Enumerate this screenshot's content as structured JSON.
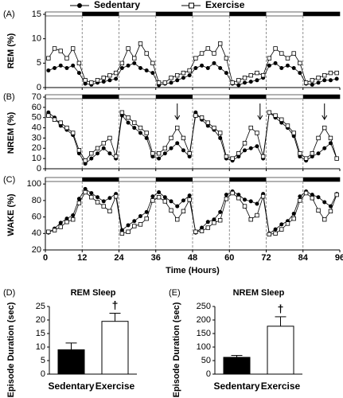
{
  "chart_data": [
    {
      "type": "line",
      "panel_label": "(A)",
      "y_label": "REM (%)",
      "x": [
        1,
        3,
        5,
        7,
        9,
        11,
        13,
        15,
        17,
        19,
        21,
        23,
        25,
        27,
        29,
        31,
        33,
        35,
        37,
        39,
        41,
        43,
        45,
        47,
        49,
        51,
        53,
        55,
        57,
        59,
        61,
        63,
        65,
        67,
        69,
        71,
        73,
        75,
        77,
        79,
        81,
        83,
        85,
        87,
        89,
        91,
        93,
        95
      ],
      "xlim": [
        0,
        96
      ],
      "xticks": [
        0,
        12,
        24,
        36,
        48,
        60,
        72,
        84,
        96
      ],
      "ylim": [
        0,
        15
      ],
      "yticks": [
        0,
        5,
        10,
        15
      ],
      "dark_periods": [
        [
          12,
          24
        ],
        [
          36,
          48
        ],
        [
          60,
          72
        ],
        [
          84,
          96
        ]
      ],
      "series": [
        {
          "name": "Sedentary",
          "color": "#000000",
          "marker": "circle",
          "values": [
            3.5,
            4,
            4.5,
            4,
            4.5,
            3,
            0.8,
            0.6,
            1,
            1.2,
            1.5,
            1.8,
            4,
            4.5,
            5,
            4,
            3.5,
            3,
            0.5,
            0.8,
            1,
            1.5,
            2,
            2.5,
            4,
            4.5,
            4,
            5,
            4,
            3,
            0.8,
            0.5,
            1,
            1.2,
            1.5,
            2,
            4.5,
            5,
            4,
            4.5,
            4,
            3,
            0.8,
            0.6,
            1,
            1.5,
            1.5,
            1.8
          ]
        },
        {
          "name": "Exercise",
          "color": "#000000",
          "marker": "square",
          "values": [
            6,
            8,
            7.5,
            6,
            8,
            5,
            1.5,
            1,
            1.5,
            2,
            2.5,
            3,
            5,
            8,
            6,
            9,
            7,
            5,
            1,
            1,
            2,
            2.5,
            3,
            3.5,
            6,
            7,
            8,
            7,
            9,
            6,
            1,
            1.5,
            2,
            2.5,
            3,
            2.5,
            6,
            8,
            7,
            6,
            7,
            5,
            1,
            1.5,
            2,
            2.5,
            3,
            3
          ]
        }
      ]
    },
    {
      "type": "line",
      "panel_label": "(B)",
      "y_label": "NREM (%)",
      "x": [
        1,
        3,
        5,
        7,
        9,
        11,
        13,
        15,
        17,
        19,
        21,
        23,
        25,
        27,
        29,
        31,
        33,
        35,
        37,
        39,
        41,
        43,
        45,
        47,
        49,
        51,
        53,
        55,
        57,
        59,
        61,
        63,
        65,
        67,
        69,
        71,
        73,
        75,
        77,
        79,
        81,
        83,
        85,
        87,
        89,
        91,
        93,
        95
      ],
      "xlim": [
        0,
        96
      ],
      "xticks": [
        0,
        12,
        24,
        36,
        48,
        60,
        72,
        84,
        96
      ],
      "ylim": [
        0,
        70
      ],
      "yticks": [
        0,
        10,
        20,
        30,
        40,
        50,
        60,
        70
      ],
      "dark_periods": [
        [
          12,
          24
        ],
        [
          36,
          48
        ],
        [
          60,
          72
        ],
        [
          84,
          96
        ]
      ],
      "arrows_x": [
        43,
        70,
        91
      ],
      "series": [
        {
          "color": "#000000",
          "marker": "circle",
          "values": [
            55,
            50,
            42,
            38,
            33,
            15,
            5,
            10,
            15,
            20,
            15,
            10,
            52,
            45,
            40,
            35,
            30,
            12,
            10,
            15,
            20,
            25,
            18,
            12,
            55,
            48,
            42,
            38,
            30,
            10,
            8,
            12,
            18,
            20,
            22,
            10,
            55,
            50,
            45,
            40,
            32,
            12,
            8,
            12,
            15,
            20,
            25,
            10
          ]
        },
        {
          "color": "#000000",
          "marker": "square",
          "values": [
            52,
            48,
            45,
            40,
            35,
            18,
            8,
            15,
            20,
            25,
            30,
            12,
            55,
            50,
            45,
            40,
            35,
            15,
            15,
            20,
            30,
            40,
            30,
            15,
            52,
            50,
            45,
            40,
            35,
            12,
            10,
            15,
            25,
            40,
            35,
            12,
            55,
            52,
            48,
            42,
            35,
            15,
            10,
            15,
            30,
            40,
            30,
            10
          ]
        }
      ]
    },
    {
      "type": "line",
      "panel_label": "(C)",
      "y_label": "WAKE (%)",
      "x_label": "Time (Hours)",
      "x": [
        1,
        3,
        5,
        7,
        9,
        11,
        13,
        15,
        17,
        19,
        21,
        23,
        25,
        27,
        29,
        31,
        33,
        35,
        37,
        39,
        41,
        43,
        45,
        47,
        49,
        51,
        53,
        55,
        57,
        59,
        61,
        63,
        65,
        67,
        69,
        71,
        73,
        75,
        77,
        79,
        81,
        83,
        85,
        87,
        89,
        91,
        93,
        95
      ],
      "xlim": [
        0,
        96
      ],
      "xticks": [
        0,
        12,
        24,
        36,
        48,
        60,
        72,
        84,
        96
      ],
      "ylim": [
        20,
        105
      ],
      "yticks": [
        20,
        40,
        60,
        80,
        100
      ],
      "dark_periods": [
        [
          12,
          24
        ],
        [
          36,
          48
        ],
        [
          60,
          72
        ],
        [
          84,
          96
        ]
      ],
      "series": [
        {
          "color": "#000000",
          "marker": "circle",
          "values": [
            41,
            46,
            53,
            58,
            62,
            82,
            94,
            89,
            84,
            79,
            83,
            88,
            44,
            50,
            55,
            61,
            66,
            85,
            90,
            84,
            79,
            73,
            80,
            86,
            41,
            47,
            54,
            57,
            66,
            87,
            91,
            87,
            81,
            79,
            76,
            88,
            40,
            45,
            51,
            55,
            64,
            85,
            91,
            87,
            84,
            78,
            73,
            88
          ]
        },
        {
          "color": "#000000",
          "marker": "square",
          "values": [
            42,
            44,
            48,
            54,
            57,
            77,
            90,
            84,
            78,
            73,
            67,
            85,
            40,
            42,
            49,
            51,
            58,
            80,
            84,
            79,
            68,
            57,
            67,
            81,
            42,
            43,
            47,
            53,
            56,
            82,
            89,
            83,
            73,
            57,
            62,
            85,
            39,
            40,
            45,
            52,
            58,
            80,
            89,
            83,
            68,
            57,
            67,
            87
          ]
        }
      ]
    },
    {
      "type": "bar",
      "panel_label": "(D)",
      "title": "REM Sleep",
      "y_label": "Episode Duration (sec)",
      "categories": [
        "Sedentary",
        "Exercise"
      ],
      "values": [
        9,
        19.5
      ],
      "errors": [
        2.5,
        3
      ],
      "colors": [
        "#000000",
        "#ffffff"
      ],
      "annotation": "†",
      "ylim": [
        0,
        25
      ],
      "yticks": [
        0,
        5,
        10,
        15,
        20,
        25
      ]
    },
    {
      "type": "bar",
      "panel_label": "(E)",
      "title": "NREM Sleep",
      "y_label": "Episode Duration (sec)",
      "categories": [
        "Sedentary",
        "Exercise"
      ],
      "values": [
        62,
        177
      ],
      "errors": [
        7,
        35
      ],
      "colors": [
        "#000000",
        "#ffffff"
      ],
      "annotation": "†",
      "ylim": [
        0,
        250
      ],
      "yticks": [
        0,
        50,
        100,
        150,
        200,
        250
      ]
    }
  ]
}
